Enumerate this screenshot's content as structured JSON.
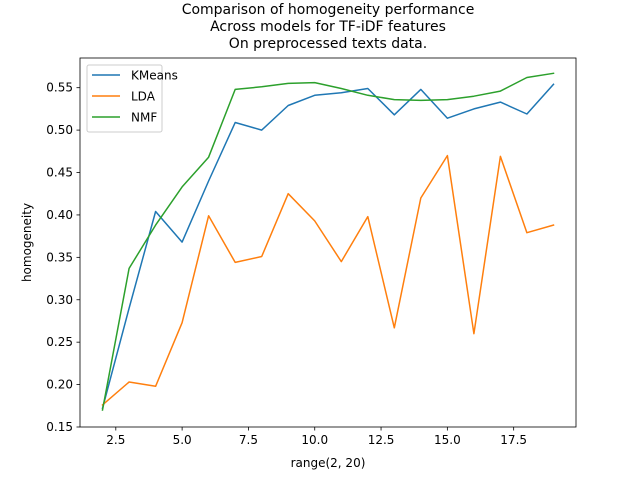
{
  "chart_data": {
    "type": "line",
    "title_lines": [
      "Comparison of homogeneity performance",
      "Across models for TF-iDF features",
      "On preprocessed texts data."
    ],
    "xlabel": "range(2, 20)",
    "ylabel": "homogeneity",
    "xlim": [
      1.15,
      19.85
    ],
    "ylim": [
      0.15,
      0.585
    ],
    "xticks": [
      2.5,
      5.0,
      7.5,
      10.0,
      12.5,
      15.0,
      17.5
    ],
    "xtick_labels": [
      "2.5",
      "5.0",
      "7.5",
      "10.0",
      "12.5",
      "15.0",
      "17.5"
    ],
    "yticks": [
      0.15,
      0.2,
      0.25,
      0.3,
      0.35,
      0.4,
      0.45,
      0.5,
      0.55
    ],
    "ytick_labels": [
      "0.15",
      "0.20",
      "0.25",
      "0.30",
      "0.35",
      "0.40",
      "0.45",
      "0.50",
      "0.55"
    ],
    "grid": false,
    "legend_position": "upper-left",
    "x": [
      2,
      3,
      4,
      5,
      6,
      7,
      8,
      9,
      10,
      11,
      12,
      13,
      14,
      15,
      16,
      17,
      18,
      19
    ],
    "series": [
      {
        "name": "KMeans",
        "color": "#1f77b4",
        "values": [
          0.172,
          0.29,
          0.404,
          0.368,
          0.44,
          0.509,
          0.5,
          0.529,
          0.541,
          0.544,
          0.549,
          0.518,
          0.548,
          0.514,
          0.525,
          0.533,
          0.519,
          0.554
        ]
      },
      {
        "name": "LDA",
        "color": "#ff7f0e",
        "values": [
          0.176,
          0.203,
          0.198,
          0.273,
          0.399,
          0.344,
          0.351,
          0.425,
          0.393,
          0.345,
          0.398,
          0.267,
          0.42,
          0.47,
          0.26,
          0.469,
          0.379,
          0.388
        ]
      },
      {
        "name": "NMF",
        "color": "#2ca02c",
        "values": [
          0.17,
          0.337,
          0.388,
          0.433,
          0.468,
          0.548,
          0.551,
          0.555,
          0.556,
          0.549,
          0.541,
          0.536,
          0.535,
          0.536,
          0.54,
          0.546,
          0.562,
          0.567
        ]
      }
    ]
  }
}
